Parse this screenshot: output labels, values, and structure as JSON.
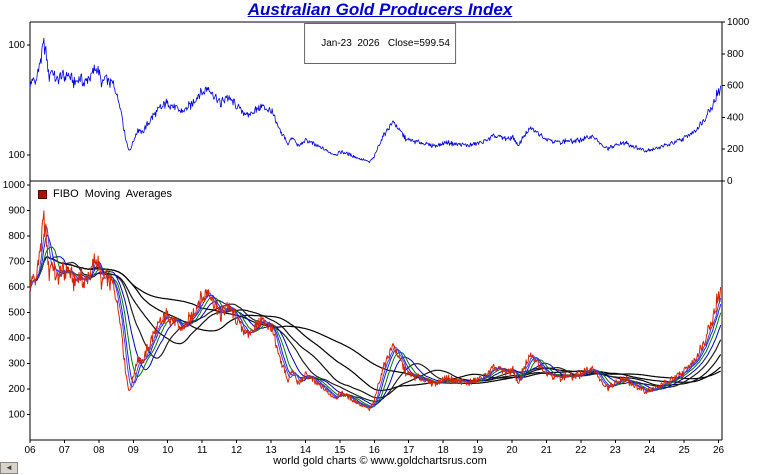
{
  "title": "Australian Gold Producers Index",
  "subtitle": "Jan-23  2026   Close=599.54",
  "legend": {
    "label": "FIBO  Moving  Averages",
    "marker_color": "#aa1100"
  },
  "footer": "world gold charts © www.goldchartsrus.com",
  "scroll_corner_glyph": "◄",
  "chart_data": {
    "type": "line",
    "title": "Australian Gold Producers Index",
    "close_date": "Jan-23 2026",
    "close": 599.54,
    "x_range": [
      2006,
      2026.1
    ],
    "x_tick_labels": [
      "06",
      "07",
      "08",
      "09",
      "10",
      "11",
      "12",
      "13",
      "14",
      "15",
      "16",
      "17",
      "18",
      "19",
      "20",
      "21",
      "22",
      "23",
      "24",
      "25",
      "26"
    ],
    "panels": [
      {
        "name": "index-price-panel",
        "scale": "linear",
        "y_range": [
          0,
          1000
        ],
        "right_ticks": [
          1000,
          800,
          600,
          400,
          200,
          0
        ],
        "left_labels": [
          "100",
          "100"
        ],
        "line_color": "#0000dd"
      },
      {
        "name": "index-fibo-ma-panel",
        "scale": "linear",
        "y_range": [
          0,
          1000
        ],
        "left_ticks": [
          1000,
          900,
          800,
          700,
          600,
          500,
          400,
          300,
          200,
          100
        ],
        "line_color": "#d42500",
        "ma_windows_weeks": [
          8,
          13,
          21,
          34,
          55,
          89,
          144,
          233
        ],
        "ma_colors": [
          "#4444ee",
          "#2222cc",
          "#007700",
          "#0000bb",
          "#222222",
          "#111111",
          "#000000",
          "#000000"
        ]
      }
    ],
    "keypoints": [
      [
        2006.0,
        590
      ],
      [
        2006.07,
        645
      ],
      [
        2006.15,
        615
      ],
      [
        2006.25,
        700
      ],
      [
        2006.33,
        780
      ],
      [
        2006.4,
        870
      ],
      [
        2006.47,
        790
      ],
      [
        2006.55,
        650
      ],
      [
        2006.62,
        700
      ],
      [
        2006.7,
        660
      ],
      [
        2006.8,
        625
      ],
      [
        2006.9,
        665
      ],
      [
        2007.0,
        650
      ],
      [
        2007.1,
        665
      ],
      [
        2007.2,
        640
      ],
      [
        2007.3,
        615
      ],
      [
        2007.45,
        655
      ],
      [
        2007.55,
        605
      ],
      [
        2007.65,
        645
      ],
      [
        2007.8,
        665
      ],
      [
        2007.9,
        705
      ],
      [
        2008.0,
        680
      ],
      [
        2008.08,
        605
      ],
      [
        2008.17,
        655
      ],
      [
        2008.25,
        635
      ],
      [
        2008.4,
        610
      ],
      [
        2008.5,
        565
      ],
      [
        2008.6,
        490
      ],
      [
        2008.68,
        400
      ],
      [
        2008.75,
        300
      ],
      [
        2008.82,
        230
      ],
      [
        2008.9,
        185
      ],
      [
        2008.96,
        230
      ],
      [
        2009.05,
        285
      ],
      [
        2009.15,
        320
      ],
      [
        2009.25,
        300
      ],
      [
        2009.4,
        355
      ],
      [
        2009.55,
        400
      ],
      [
        2009.7,
        440
      ],
      [
        2009.85,
        470
      ],
      [
        2010.0,
        495
      ],
      [
        2010.15,
        470
      ],
      [
        2010.3,
        445
      ],
      [
        2010.45,
        435
      ],
      [
        2010.6,
        465
      ],
      [
        2010.75,
        500
      ],
      [
        2010.9,
        545
      ],
      [
        2011.05,
        565
      ],
      [
        2011.2,
        585
      ],
      [
        2011.3,
        545
      ],
      [
        2011.45,
        505
      ],
      [
        2011.55,
        485
      ],
      [
        2011.7,
        530
      ],
      [
        2011.85,
        505
      ],
      [
        2012.0,
        475
      ],
      [
        2012.15,
        440
      ],
      [
        2012.3,
        415
      ],
      [
        2012.45,
        435
      ],
      [
        2012.6,
        455
      ],
      [
        2012.75,
        470
      ],
      [
        2012.9,
        450
      ],
      [
        2013.0,
        445
      ],
      [
        2013.1,
        395
      ],
      [
        2013.2,
        340
      ],
      [
        2013.3,
        300
      ],
      [
        2013.42,
        265
      ],
      [
        2013.5,
        235
      ],
      [
        2013.6,
        270
      ],
      [
        2013.7,
        250
      ],
      [
        2013.8,
        215
      ],
      [
        2013.9,
        235
      ],
      [
        2014.0,
        255
      ],
      [
        2014.15,
        245
      ],
      [
        2014.3,
        225
      ],
      [
        2014.45,
        210
      ],
      [
        2014.6,
        195
      ],
      [
        2014.75,
        175
      ],
      [
        2014.9,
        165
      ],
      [
        2015.0,
        185
      ],
      [
        2015.15,
        175
      ],
      [
        2015.3,
        165
      ],
      [
        2015.45,
        150
      ],
      [
        2015.6,
        140
      ],
      [
        2015.75,
        128
      ],
      [
        2015.85,
        118
      ],
      [
        2016.0,
        150
      ],
      [
        2016.1,
        210
      ],
      [
        2016.2,
        255
      ],
      [
        2016.3,
        300
      ],
      [
        2016.45,
        345
      ],
      [
        2016.55,
        375
      ],
      [
        2016.65,
        345
      ],
      [
        2016.8,
        300
      ],
      [
        2016.9,
        270
      ],
      [
        2017.0,
        255
      ],
      [
        2017.2,
        248
      ],
      [
        2017.4,
        238
      ],
      [
        2017.6,
        228
      ],
      [
        2017.8,
        222
      ],
      [
        2017.95,
        232
      ],
      [
        2018.1,
        242
      ],
      [
        2018.3,
        236
      ],
      [
        2018.5,
        228
      ],
      [
        2018.7,
        222
      ],
      [
        2018.9,
        232
      ],
      [
        2019.1,
        244
      ],
      [
        2019.3,
        262
      ],
      [
        2019.5,
        282
      ],
      [
        2019.7,
        272
      ],
      [
        2019.9,
        262
      ],
      [
        2020.05,
        275
      ],
      [
        2020.18,
        215
      ],
      [
        2020.3,
        268
      ],
      [
        2020.45,
        305
      ],
      [
        2020.55,
        328
      ],
      [
        2020.7,
        308
      ],
      [
        2020.85,
        288
      ],
      [
        2021.0,
        268
      ],
      [
        2021.2,
        252
      ],
      [
        2021.4,
        242
      ],
      [
        2021.6,
        254
      ],
      [
        2021.8,
        248
      ],
      [
        2022.0,
        258
      ],
      [
        2022.2,
        272
      ],
      [
        2022.35,
        282
      ],
      [
        2022.5,
        248
      ],
      [
        2022.65,
        215
      ],
      [
        2022.8,
        205
      ],
      [
        2022.95,
        218
      ],
      [
        2023.1,
        232
      ],
      [
        2023.3,
        242
      ],
      [
        2023.5,
        218
      ],
      [
        2023.7,
        202
      ],
      [
        2023.9,
        194
      ],
      [
        2024.1,
        200
      ],
      [
        2024.3,
        214
      ],
      [
        2024.5,
        226
      ],
      [
        2024.7,
        240
      ],
      [
        2024.85,
        252
      ],
      [
        2025.0,
        265
      ],
      [
        2025.15,
        292
      ],
      [
        2025.3,
        312
      ],
      [
        2025.45,
        348
      ],
      [
        2025.6,
        395
      ],
      [
        2025.72,
        440
      ],
      [
        2025.82,
        478
      ],
      [
        2025.9,
        515
      ],
      [
        2025.96,
        545
      ],
      [
        2026.02,
        570
      ],
      [
        2026.06,
        599.54
      ]
    ]
  }
}
